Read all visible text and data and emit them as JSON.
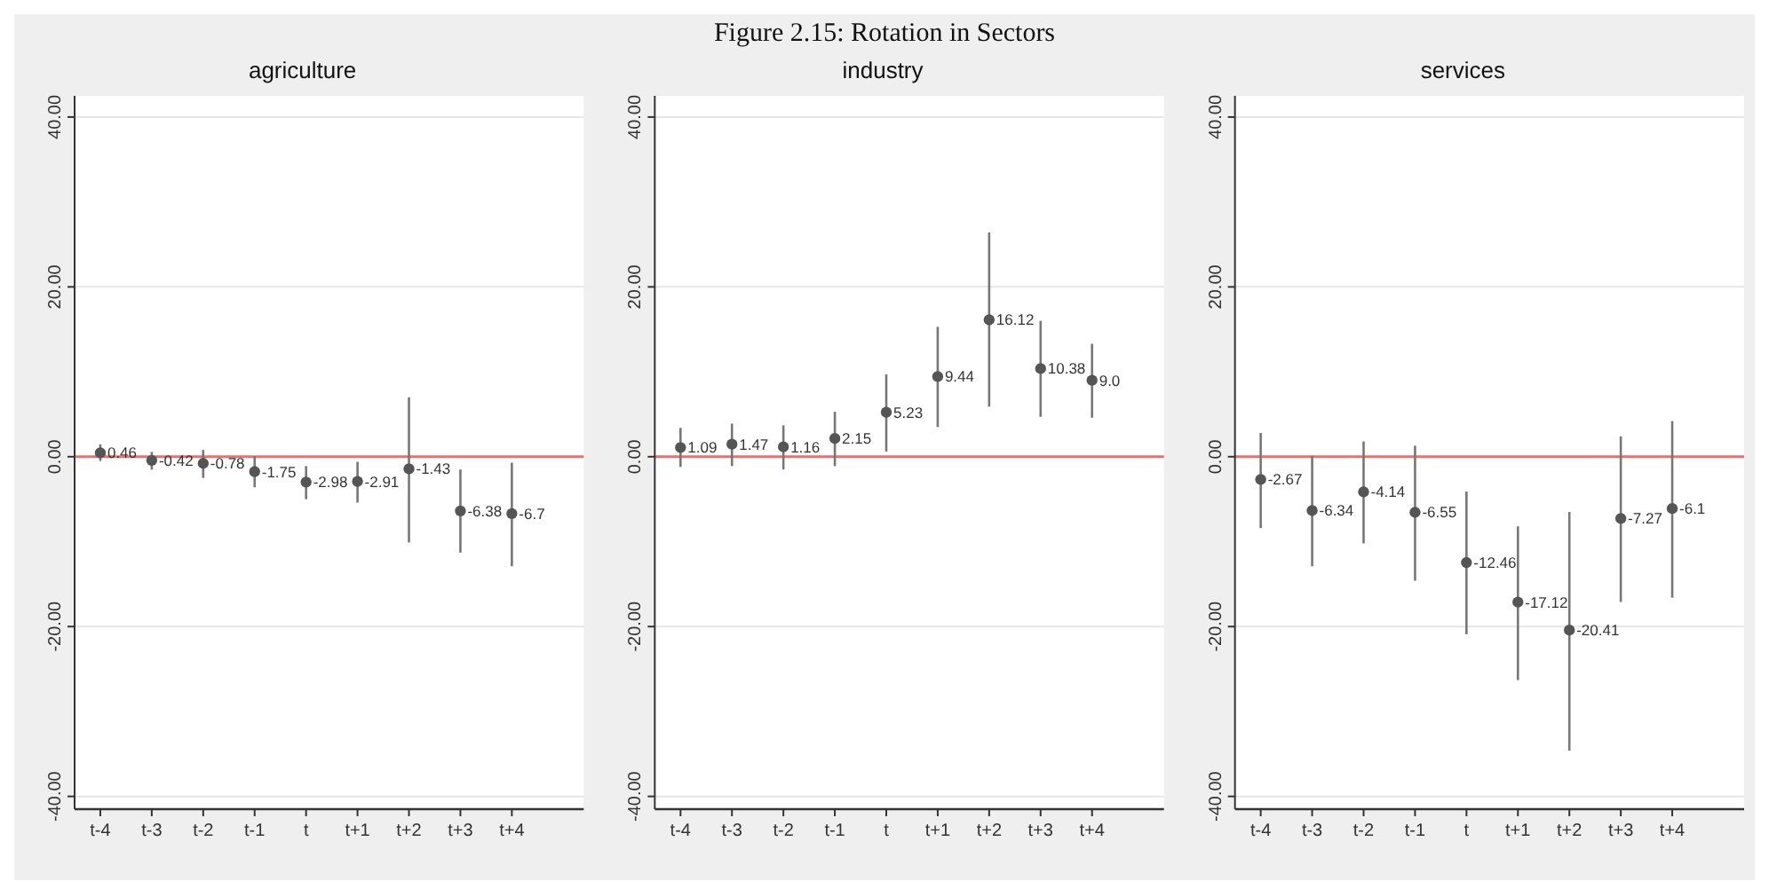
{
  "chart_data": [
    {
      "type": "scatter",
      "title": "agriculture",
      "annotations": [
        "Figure 2.15: Rotation in Sectors"
      ],
      "categories": [
        "t-4",
        "t-3",
        "t-2",
        "t-1",
        "t",
        "t+1",
        "t+2",
        "t+3",
        "t+4"
      ],
      "series": [
        {
          "color": "#555555",
          "values": [
            0.46,
            -0.42,
            -0.78,
            -1.75,
            -2.98,
            -2.91,
            -1.43,
            -6.38,
            -6.7
          ],
          "errors": [
            [
              -0.5,
              1.46
            ],
            [
              -1.52,
              0.57
            ],
            [
              -2.5,
              0.8
            ],
            [
              -3.6,
              0.06
            ],
            [
              -5.0,
              -1.1
            ],
            [
              -5.4,
              -0.6
            ],
            [
              -10.1,
              7.0
            ],
            [
              -11.3,
              -1.5
            ],
            [
              -12.9,
              -0.7
            ]
          ]
        }
      ],
      "ylim": [
        -41.5,
        42.5
      ],
      "yticks": [
        {
          "value": -40,
          "label": "-40.00"
        },
        {
          "value": -20,
          "label": "-20.00"
        },
        {
          "value": 0,
          "label": "0.00"
        },
        {
          "value": 20,
          "label": "20.00"
        },
        {
          "value": 40,
          "label": "40.00"
        }
      ],
      "grid": "y",
      "marker": "circle",
      "data_labels": true,
      "ref_lines": [
        {
          "axis": "y",
          "value": 0,
          "color": "#e8706e"
        }
      ]
    },
    {
      "type": "scatter",
      "title": "industry",
      "categories": [
        "t-4",
        "t-3",
        "t-2",
        "t-1",
        "t",
        "t+1",
        "t+2",
        "t+3",
        "t+4"
      ],
      "series": [
        {
          "color": "#555555",
          "values": [
            1.09,
            1.47,
            1.16,
            2.15,
            5.23,
            9.44,
            16.12,
            10.38,
            9.0
          ],
          "value_labels": [
            "1.09",
            "1.47",
            "1.16",
            "2.15",
            "5.23",
            "9.44",
            "16.12",
            "10.38",
            "9.0"
          ],
          "errors": [
            [
              -1.2,
              3.4
            ],
            [
              -1.1,
              3.9
            ],
            [
              -1.5,
              3.7
            ],
            [
              -1.1,
              5.3
            ],
            [
              0.6,
              9.7
            ],
            [
              3.5,
              15.3
            ],
            [
              5.9,
              26.4
            ],
            [
              4.7,
              16.0
            ],
            [
              4.6,
              13.3
            ]
          ]
        }
      ],
      "ylim": [
        -41.5,
        42.5
      ],
      "yticks": [
        {
          "value": -40,
          "label": "-40.00"
        },
        {
          "value": -20,
          "label": "-20.00"
        },
        {
          "value": 0,
          "label": "0.00"
        },
        {
          "value": 20,
          "label": "20.00"
        },
        {
          "value": 40,
          "label": "40.00"
        }
      ],
      "grid": "y",
      "marker": "circle",
      "data_labels": true,
      "ref_lines": [
        {
          "axis": "y",
          "value": 0,
          "color": "#e8706e"
        }
      ]
    },
    {
      "type": "scatter",
      "title": "services",
      "categories": [
        "t-4",
        "t-3",
        "t-2",
        "t-1",
        "t",
        "t+1",
        "t+2",
        "t+3",
        "t+4"
      ],
      "series": [
        {
          "color": "#555555",
          "values": [
            -2.67,
            -6.34,
            -4.14,
            -6.55,
            -12.46,
            -17.12,
            -20.41,
            -7.27,
            -6.1
          ],
          "errors": [
            [
              -8.4,
              2.8
            ],
            [
              -12.9,
              0.1
            ],
            [
              -10.2,
              1.8
            ],
            [
              -14.6,
              1.3
            ],
            [
              -20.9,
              -4.1
            ],
            [
              -26.3,
              -8.2
            ],
            [
              -34.6,
              -6.5
            ],
            [
              -17.1,
              2.4
            ],
            [
              -16.6,
              4.2
            ]
          ]
        }
      ],
      "ylim": [
        -41.5,
        42.5
      ],
      "yticks": [
        {
          "value": -40,
          "label": "-40.00"
        },
        {
          "value": -20,
          "label": "-20.00"
        },
        {
          "value": 0,
          "label": "0.00"
        },
        {
          "value": 20,
          "label": "20.00"
        },
        {
          "value": 40,
          "label": "40.00"
        }
      ],
      "grid": "y",
      "marker": "circle",
      "data_labels": true,
      "ref_lines": [
        {
          "axis": "y",
          "value": 0,
          "color": "#e8706e"
        }
      ]
    }
  ]
}
